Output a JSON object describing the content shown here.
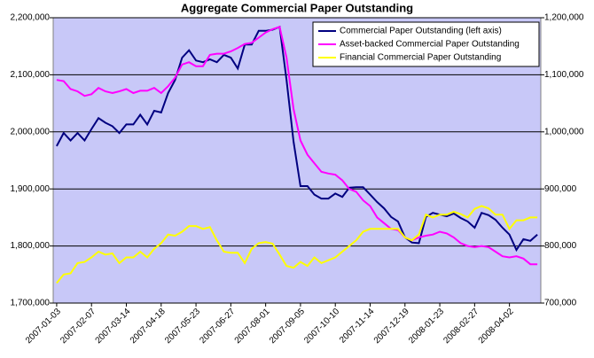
{
  "chart_data": {
    "type": "line",
    "title": "Aggregate Commercial Paper Outstanding",
    "categories": [
      "2007-01-03",
      null,
      null,
      null,
      null,
      "2007-02-07",
      null,
      null,
      null,
      null,
      "2007-03-14",
      null,
      null,
      null,
      null,
      "2007-04-18",
      null,
      null,
      null,
      null,
      "2007-05-23",
      null,
      null,
      null,
      null,
      "2007-06-27",
      null,
      null,
      null,
      null,
      "2007-08-01",
      null,
      null,
      null,
      null,
      "2007-09-05",
      null,
      null,
      null,
      null,
      "2007-10-10",
      null,
      null,
      null,
      null,
      "2007-11-14",
      null,
      null,
      null,
      null,
      "2007-12-19",
      null,
      null,
      null,
      null,
      "2008-01-23",
      null,
      null,
      null,
      null,
      "2008-02-27",
      null,
      null,
      null,
      null,
      "2008-04-02",
      null,
      null,
      null,
      null
    ],
    "series": [
      {
        "name": "Commercial Paper Outstanding (left axis)",
        "color": "#000080",
        "axis": "y",
        "values": [
          1975000,
          1998000,
          1985000,
          1998000,
          1985000,
          2005000,
          2024000,
          2016000,
          2010000,
          1998000,
          2013000,
          2013000,
          2030000,
          2013000,
          2037000,
          2034000,
          2068000,
          2091000,
          2130000,
          2143000,
          2125000,
          2122000,
          2127000,
          2122000,
          2135000,
          2130000,
          2111000,
          2153000,
          2153000,
          2177000,
          2177000,
          2179000,
          2184000,
          2091000,
          1983000,
          1905000,
          1905000,
          1890000,
          1883000,
          1883000,
          1892000,
          1886000,
          1902000,
          1903000,
          1903000,
          1890000,
          1877000,
          1866000,
          1851000,
          1843000,
          1815000,
          1806000,
          1805000,
          1851000,
          1858000,
          1855000,
          1852000,
          1857000,
          1849000,
          1843000,
          1832000,
          1858000,
          1854000,
          1846000,
          1832000,
          1820000,
          1793000,
          1812000,
          1809000,
          1820000
        ]
      },
      {
        "name": "Asset-backed Commercial Paper Outstanding",
        "color": "#ff00ff",
        "axis": "y2",
        "values": [
          1091000,
          1089000,
          1075000,
          1071000,
          1063000,
          1066000,
          1077000,
          1071000,
          1068000,
          1071000,
          1075000,
          1068000,
          1072000,
          1072000,
          1077000,
          1068000,
          1080000,
          1095000,
          1118000,
          1122000,
          1115000,
          1115000,
          1135000,
          1137000,
          1137000,
          1141000,
          1147000,
          1154000,
          1156000,
          1165000,
          1174000,
          1180000,
          1184000,
          1130000,
          1040000,
          985000,
          960000,
          945000,
          930000,
          927000,
          925000,
          915000,
          900000,
          895000,
          880000,
          870000,
          850000,
          840000,
          830000,
          828000,
          815000,
          810000,
          815000,
          818000,
          820000,
          825000,
          822000,
          815000,
          805000,
          800000,
          798000,
          800000,
          798000,
          790000,
          782000,
          780000,
          782000,
          778000,
          768000,
          768000
        ]
      },
      {
        "name": "Financial Commercial Paper Outstanding",
        "color": "#ffff00",
        "axis": "y2",
        "values": [
          735000,
          750000,
          752000,
          770000,
          772000,
          780000,
          790000,
          785000,
          787000,
          770000,
          780000,
          780000,
          790000,
          780000,
          795000,
          805000,
          820000,
          818000,
          825000,
          835000,
          835000,
          830000,
          833000,
          810000,
          790000,
          788000,
          788000,
          770000,
          795000,
          805000,
          807000,
          804000,
          785000,
          765000,
          762000,
          772000,
          765000,
          780000,
          770000,
          775000,
          780000,
          790000,
          800000,
          810000,
          825000,
          830000,
          830000,
          830000,
          830000,
          830000,
          815000,
          810000,
          820000,
          855000,
          850000,
          855000,
          855000,
          860000,
          856000,
          850000,
          865000,
          870000,
          866000,
          855000,
          855000,
          830000,
          845000,
          845000,
          850000,
          850000
        ]
      }
    ],
    "ylim": [
      1700000,
      2200000
    ],
    "yticks": [
      {
        "value": 1700000,
        "label": "1,700,000"
      },
      {
        "value": 1800000,
        "label": "1,800,000"
      },
      {
        "value": 1900000,
        "label": "1,900,000"
      },
      {
        "value": 2000000,
        "label": "2,000,000"
      },
      {
        "value": 2100000,
        "label": "2,100,000"
      },
      {
        "value": 2200000,
        "label": "2,200,000"
      }
    ],
    "y2lim": [
      700000,
      1200000
    ],
    "y2ticks": [
      {
        "value": 700000,
        "label": "700,000"
      },
      {
        "value": 800000,
        "label": "800,000"
      },
      {
        "value": 900000,
        "label": "900,000"
      },
      {
        "value": 1000000,
        "label": "1,000,000"
      },
      {
        "value": 1100000,
        "label": "1,100,000"
      },
      {
        "value": 1200000,
        "label": "1,200,000"
      }
    ],
    "grid": true,
    "legend": "upper right"
  }
}
